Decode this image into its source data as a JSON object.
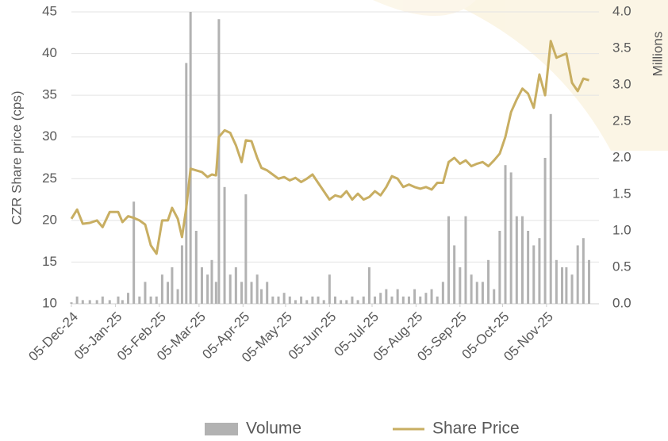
{
  "chart_data": {
    "type": "bar-line",
    "y_label": "CZR Share price (cps)",
    "y2_label": "Millions",
    "x": [
      "2024-12-05",
      "2024-12-09",
      "2024-12-13",
      "2024-12-18",
      "2024-12-23",
      "2024-12-27",
      "2025-01-01",
      "2025-01-07",
      "2025-01-10",
      "2025-01-14",
      "2025-01-18",
      "2025-01-22",
      "2025-01-26",
      "2025-01-30",
      "2025-02-03",
      "2025-02-07",
      "2025-02-11",
      "2025-02-14",
      "2025-02-18",
      "2025-02-21",
      "2025-02-24",
      "2025-02-27",
      "2025-03-03",
      "2025-03-07",
      "2025-03-11",
      "2025-03-14",
      "2025-03-17",
      "2025-03-19",
      "2025-03-23",
      "2025-03-27",
      "2025-03-31",
      "2025-04-04",
      "2025-04-07",
      "2025-04-11",
      "2025-04-15",
      "2025-04-18",
      "2025-04-22",
      "2025-04-26",
      "2025-04-30",
      "2025-05-04",
      "2025-05-08",
      "2025-05-12",
      "2025-05-16",
      "2025-05-20",
      "2025-05-24",
      "2025-05-28",
      "2025-06-01",
      "2025-06-05",
      "2025-06-09",
      "2025-06-13",
      "2025-06-17",
      "2025-06-21",
      "2025-06-25",
      "2025-06-29",
      "2025-07-03",
      "2025-07-07",
      "2025-07-11",
      "2025-07-15",
      "2025-07-19",
      "2025-07-23",
      "2025-07-27",
      "2025-07-31",
      "2025-08-04",
      "2025-08-08",
      "2025-08-12",
      "2025-08-16",
      "2025-08-20",
      "2025-08-24",
      "2025-08-28",
      "2025-09-01",
      "2025-09-05",
      "2025-09-09",
      "2025-09-13",
      "2025-09-17",
      "2025-09-21",
      "2025-09-25",
      "2025-09-29",
      "2025-10-03",
      "2025-10-07",
      "2025-10-11",
      "2025-10-15",
      "2025-10-19",
      "2025-10-23",
      "2025-10-27",
      "2025-10-31",
      "2025-11-04",
      "2025-11-08",
      "2025-11-12",
      "2025-11-16",
      "2025-11-19",
      "2025-11-23",
      "2025-11-27",
      "2025-12-01",
      "2025-12-05"
    ],
    "series": [
      {
        "name": "Volume",
        "type": "bar",
        "axis": "y2",
        "color": "#b2b2b2",
        "values": [
          0.02,
          0.1,
          0.05,
          0.05,
          0.05,
          0.1,
          0.05,
          0.1,
          0.05,
          0.15,
          1.4,
          0.1,
          0.3,
          0.1,
          0.1,
          0.4,
          0.3,
          0.5,
          0.2,
          0.8,
          3.3,
          4.0,
          1.0,
          0.5,
          0.4,
          0.6,
          0.3,
          3.9,
          1.6,
          0.4,
          0.5,
          0.3,
          1.5,
          0.3,
          0.4,
          0.2,
          0.3,
          0.1,
          0.1,
          0.15,
          0.1,
          0.05,
          0.1,
          0.05,
          0.1,
          0.1,
          0.05,
          0.4,
          0.1,
          0.05,
          0.05,
          0.1,
          0.05,
          0.1,
          0.5,
          0.1,
          0.15,
          0.2,
          0.1,
          0.2,
          0.1,
          0.1,
          0.2,
          0.1,
          0.15,
          0.2,
          0.1,
          0.3,
          1.2,
          0.8,
          0.5,
          1.2,
          0.4,
          0.3,
          0.3,
          0.6,
          0.2,
          1.0,
          1.9,
          1.8,
          1.2,
          1.2,
          1.0,
          0.8,
          0.9,
          2.0,
          2.6,
          0.6,
          0.5,
          0.5,
          0.4,
          0.8,
          0.9,
          0.6
        ]
      },
      {
        "name": "Share Price",
        "type": "line",
        "axis": "y",
        "color": "#c8ae62",
        "values": [
          20.2,
          21.3,
          19.6,
          19.7,
          20,
          19.2,
          21,
          21,
          19.8,
          20.5,
          20.3,
          20,
          19.5,
          17,
          16,
          20,
          20,
          21.5,
          20.2,
          18,
          21.5,
          26.2,
          26,
          25.8,
          25.2,
          25.5,
          25.4,
          30,
          30.8,
          30.5,
          29,
          27,
          29.6,
          29.5,
          27.5,
          26.3,
          26,
          25.5,
          25,
          25.2,
          24.8,
          25.1,
          24.6,
          25,
          25.5,
          24.5,
          23.5,
          22.5,
          23,
          22.8,
          23.5,
          22.5,
          23.2,
          22.5,
          22.8,
          23.5,
          23,
          24,
          25.3,
          25,
          24,
          24.3,
          24,
          23.8,
          24,
          23.7,
          24.5,
          24.5,
          27,
          27.5,
          26.8,
          27.2,
          26.5,
          26.8,
          27,
          26.5,
          27.2,
          28,
          30,
          33,
          34.5,
          35.8,
          35.2,
          33.5,
          37.5,
          35,
          41.5,
          39.5,
          39.8,
          40,
          36.5,
          35.5,
          37,
          36.8
        ]
      }
    ],
    "xlim": [
      "2024-12-05",
      "2025-12-12"
    ],
    "xticks": [
      {
        "value": "2024-12-05",
        "label": "05-Dec-24"
      },
      {
        "value": "2025-01-05",
        "label": "05-Jan-25"
      },
      {
        "value": "2025-02-05",
        "label": "05-Feb-25"
      },
      {
        "value": "2025-03-05",
        "label": "05-Mar-25"
      },
      {
        "value": "2025-04-05",
        "label": "05-Apr-25"
      },
      {
        "value": "2025-05-05",
        "label": "05-May-25"
      },
      {
        "value": "2025-06-05",
        "label": "05-Jun-25"
      },
      {
        "value": "2025-07-05",
        "label": "05-Jul-25"
      },
      {
        "value": "2025-08-05",
        "label": "05-Aug-25"
      },
      {
        "value": "2025-09-05",
        "label": "05-Sep-25"
      },
      {
        "value": "2025-10-05",
        "label": "05-Oct-25"
      },
      {
        "value": "2025-11-05",
        "label": "05-Nov-25"
      }
    ],
    "ylim": [
      10,
      45
    ],
    "yticks": [
      10,
      15,
      20,
      25,
      30,
      35,
      40,
      45
    ],
    "y2lim": [
      0,
      4
    ],
    "y2ticks": [
      {
        "value": 0,
        "label": "0.0"
      },
      0.5,
      {
        "value": 1,
        "label": "1.0"
      },
      1.5,
      {
        "value": 2,
        "label": "2.0"
      },
      2.5,
      {
        "value": 3,
        "label": "3.0"
      },
      3.5,
      {
        "value": 4,
        "label": "4.0"
      }
    ],
    "grid": true,
    "legend": "bottom"
  }
}
